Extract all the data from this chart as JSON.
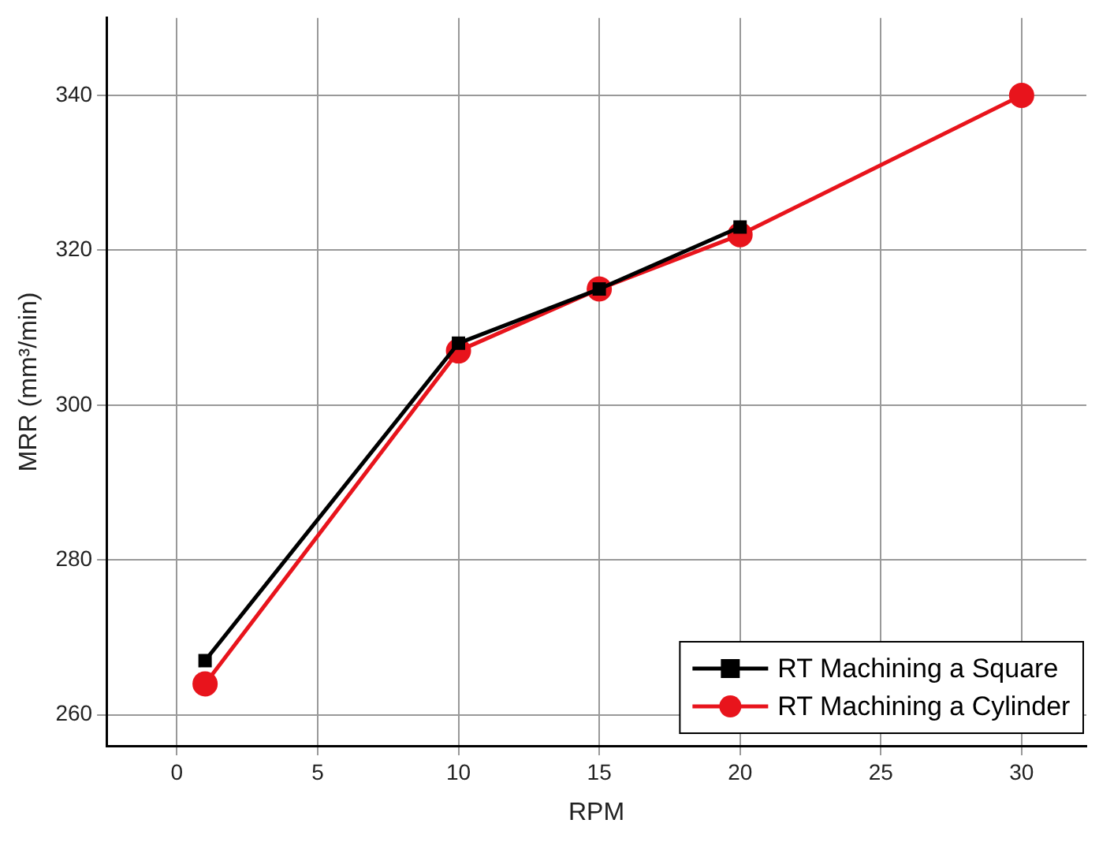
{
  "chart_data": {
    "type": "line",
    "xlabel": "RPM",
    "ylabel": "MRR (mm³/min)",
    "xlim": [
      -2.5,
      32.3
    ],
    "xticks": [
      0,
      5,
      10,
      15,
      20,
      25,
      30
    ],
    "ylim": [
      256,
      350
    ],
    "yticks": [
      260,
      280,
      300,
      320,
      340
    ],
    "grid": true,
    "legend": "bottom right",
    "line_style": "solid",
    "series": [
      {
        "name": "RT Machining a Square",
        "color": "#000000",
        "marker": "square",
        "x": [
          1,
          10,
          15,
          20
        ],
        "values": [
          267,
          308,
          315,
          323
        ]
      },
      {
        "name": "RT Machining a Cylinder",
        "color": "#e8141c",
        "marker": "circle",
        "x": [
          1,
          10,
          15,
          20,
          30
        ],
        "values": [
          264,
          307,
          315,
          322,
          340
        ]
      }
    ]
  }
}
